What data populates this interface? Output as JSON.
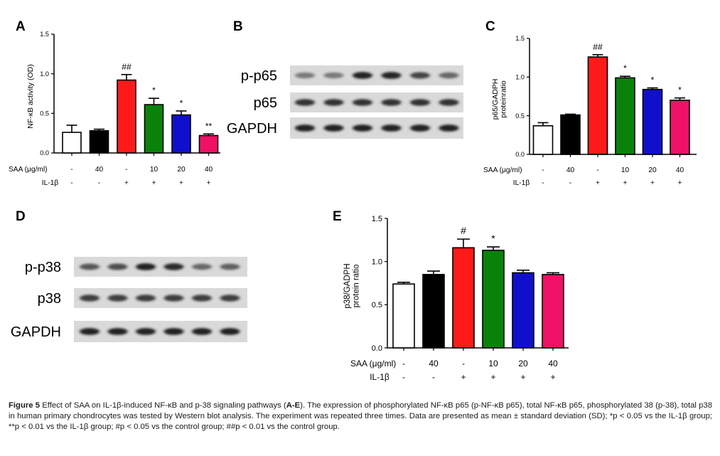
{
  "panel_letters": [
    "A",
    "B",
    "C",
    "D",
    "E"
  ],
  "condition_rows": {
    "saa_label": "SAA (μg/ml)",
    "il_label": "IL-1β",
    "saa": [
      "-",
      "40",
      "-",
      "10",
      "20",
      "40"
    ],
    "il": [
      "-",
      "-",
      "+",
      "+",
      "+",
      "+"
    ]
  },
  "bar_colors": [
    "#ffffff",
    "#000000",
    "#ff1a1a",
    "#0a820a",
    "#1010cc",
    "#ee1166"
  ],
  "chart_data": [
    {
      "panel": "A",
      "type": "bar",
      "ylabel": "NF-κB activity (OD)",
      "ylim": [
        0,
        1.5
      ],
      "yticks": [
        "0.0",
        "0.5",
        "1.0",
        "1.5"
      ],
      "categories": [
        "1",
        "2",
        "3",
        "4",
        "5",
        "6"
      ],
      "values": [
        0.26,
        0.28,
        0.92,
        0.61,
        0.48,
        0.22
      ],
      "errors": [
        0.09,
        0.02,
        0.07,
        0.08,
        0.05,
        0.02
      ],
      "annotations": [
        "",
        "",
        "##",
        "*",
        "*",
        "**"
      ]
    },
    {
      "panel": "C",
      "type": "bar",
      "ylabel": "p65/GADPH proteinratio",
      "ylim": [
        0,
        1.5
      ],
      "yticks": [
        "0.0",
        "0.5",
        "1.0",
        "1.5"
      ],
      "categories": [
        "1",
        "2",
        "3",
        "4",
        "5",
        "6"
      ],
      "values": [
        0.37,
        0.51,
        1.26,
        0.99,
        0.84,
        0.7
      ],
      "errors": [
        0.04,
        0.01,
        0.03,
        0.02,
        0.02,
        0.03
      ],
      "annotations": [
        "",
        "",
        "##",
        "*",
        "*",
        "*"
      ]
    },
    {
      "panel": "E",
      "type": "bar",
      "ylabel": "p38/GADPH protein ratio",
      "ylim": [
        0,
        1.5
      ],
      "yticks": [
        "0.0",
        "0.5",
        "1.0",
        "1.5"
      ],
      "categories": [
        "1",
        "2",
        "3",
        "4",
        "5",
        "6"
      ],
      "values": [
        0.74,
        0.85,
        1.16,
        1.13,
        0.87,
        0.85
      ],
      "errors": [
        0.02,
        0.04,
        0.1,
        0.04,
        0.03,
        0.02
      ],
      "annotations": [
        "",
        "",
        "#",
        "*",
        "",
        ""
      ]
    }
  ],
  "blots": [
    {
      "panel": "B",
      "rows": [
        {
          "label": "p-p65",
          "intensities": [
            0.45,
            0.45,
            0.95,
            0.92,
            0.75,
            0.55
          ]
        },
        {
          "label": "p65",
          "intensities": [
            0.85,
            0.85,
            0.85,
            0.85,
            0.85,
            0.85
          ]
        },
        {
          "label": "GAPDH",
          "intensities": [
            0.95,
            0.95,
            0.95,
            0.95,
            0.95,
            0.95
          ]
        }
      ]
    },
    {
      "panel": "D",
      "rows": [
        {
          "label": "p-p38",
          "intensities": [
            0.65,
            0.7,
            0.95,
            0.9,
            0.55,
            0.6
          ]
        },
        {
          "label": "p38",
          "intensities": [
            0.8,
            0.8,
            0.8,
            0.8,
            0.8,
            0.8
          ]
        },
        {
          "label": "GAPDH",
          "intensities": [
            0.95,
            0.95,
            0.95,
            0.95,
            0.95,
            0.95
          ]
        }
      ]
    }
  ],
  "caption": {
    "figure_label": "Figure 5",
    "title_part1": " Effect of SAA on IL-1β-induced NF-κB and p-38 signaling pathways (",
    "panels_ref": "A-E",
    "title_part2": "). The expression of phosphorylated NF-κB p65 (p-NF-κB p65), total NF-κB p65, phosphorylated 38 (p-38), total p38 in human primary chondrocytes was tested by Western blot analysis. The experiment was repeated three times. Data are presented as mean ± standard deviation (SD); *p < 0.05 vs the IL-1β group; **p < 0.01 vs the IL-1β group; #p < 0.05 vs the control group; ##p < 0.01 vs the control group."
  }
}
